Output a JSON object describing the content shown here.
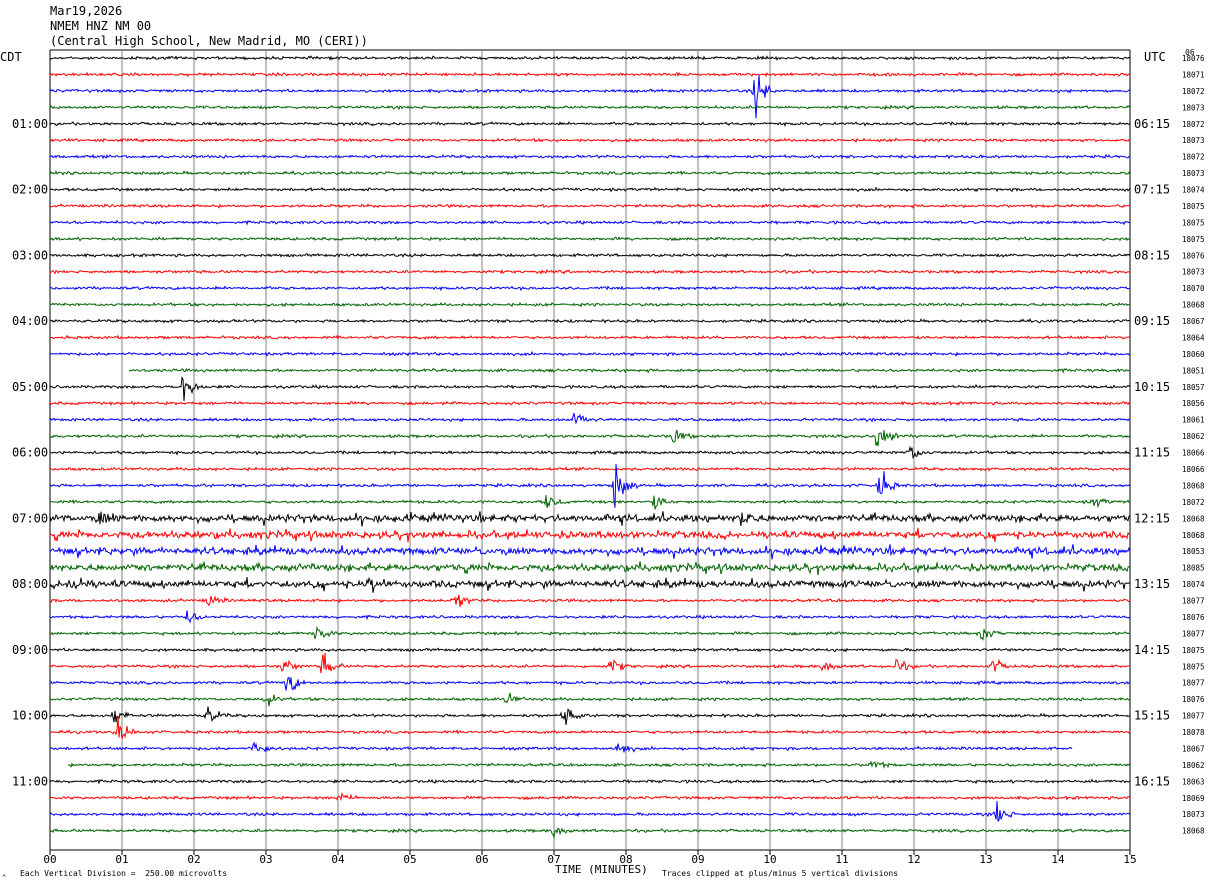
{
  "header": {
    "date": "Mar19,2026",
    "station": "NMEM HNZ NM 00",
    "location": "(Central High School, New Madrid, MO (CERI))"
  },
  "labels": {
    "left_tz": "CDT",
    "right_tz": "UTC",
    "right_corner": "06"
  },
  "footer": {
    "scale_note": "Each Vertical Division =  250.00 microvolts",
    "clip_note": "Traces clipped at plus/minus 5 vertical divisions",
    "corner_mark": "^"
  },
  "colors": {
    "trace_cycle": [
      "#000000",
      "#ff0000",
      "#0000ff",
      "#006400"
    ],
    "grid": "#808080"
  },
  "chart_data": {
    "type": "seismogram",
    "xlabel": "TIME (MINUTES)",
    "xlim": [
      0,
      15
    ],
    "x_ticks": [
      "00",
      "01",
      "02",
      "03",
      "04",
      "05",
      "06",
      "07",
      "08",
      "09",
      "10",
      "11",
      "12",
      "13",
      "14",
      "15"
    ],
    "trace_interval_minutes": 15,
    "left_time_labels": [
      {
        "row": 4,
        "label": "01:00"
      },
      {
        "row": 8,
        "label": "02:00"
      },
      {
        "row": 12,
        "label": "03:00"
      },
      {
        "row": 16,
        "label": "04:00"
      },
      {
        "row": 20,
        "label": "05:00"
      },
      {
        "row": 24,
        "label": "06:00"
      },
      {
        "row": 28,
        "label": "07:00"
      },
      {
        "row": 32,
        "label": "08:00"
      },
      {
        "row": 36,
        "label": "09:00"
      },
      {
        "row": 40,
        "label": "10:00"
      },
      {
        "row": 44,
        "label": "11:00"
      }
    ],
    "right_time_labels": [
      {
        "row": 4,
        "label": "06:15"
      },
      {
        "row": 8,
        "label": "07:15"
      },
      {
        "row": 12,
        "label": "08:15"
      },
      {
        "row": 16,
        "label": "09:15"
      },
      {
        "row": 20,
        "label": "10:15"
      },
      {
        "row": 24,
        "label": "11:15"
      },
      {
        "row": 28,
        "label": "12:15"
      },
      {
        "row": 32,
        "label": "13:15"
      },
      {
        "row": 36,
        "label": "14:15"
      },
      {
        "row": 40,
        "label": "15:15"
      },
      {
        "row": 44,
        "label": "16:15"
      }
    ],
    "trace_values": [
      "18076",
      "18071",
      "18072",
      "18073",
      "18072",
      "18073",
      "18072",
      "18073",
      "18074",
      "18075",
      "18075",
      "18075",
      "18076",
      "18073",
      "18070",
      "18068",
      "18067",
      "18064",
      "18060",
      "18051",
      "18057",
      "18056",
      "18061",
      "18062",
      "18066",
      "18066",
      "18068",
      "18072",
      "18068",
      "18068",
      "18053",
      "18085",
      "18074",
      "18077",
      "18076",
      "18077",
      "18075",
      "18075",
      "18077",
      "18076",
      "18077",
      "18078",
      "18067",
      "18062",
      "18063",
      "18069",
      "18073",
      "18068"
    ],
    "activity": {
      "noisy_rows": [
        28,
        29,
        30,
        31,
        32
      ],
      "trace_start_minutes": {
        "19": 1.1,
        "43": 0.25
      },
      "trace_end_minutes": {
        "42": 14.2
      },
      "events": [
        {
          "row": 2,
          "minute": 9.8,
          "amplitude": 22
        },
        {
          "row": 20,
          "minute": 1.85,
          "amplitude": 16
        },
        {
          "row": 22,
          "minute": 7.3,
          "amplitude": 10
        },
        {
          "row": 23,
          "minute": 8.65,
          "amplitude": 9
        },
        {
          "row": 23,
          "minute": 11.5,
          "amplitude": 28
        },
        {
          "row": 24,
          "minute": 11.95,
          "amplitude": 10
        },
        {
          "row": 26,
          "minute": 7.85,
          "amplitude": 24
        },
        {
          "row": 26,
          "minute": 11.5,
          "amplitude": 22
        },
        {
          "row": 27,
          "minute": 6.9,
          "amplitude": 8
        },
        {
          "row": 27,
          "minute": 8.4,
          "amplitude": 8
        },
        {
          "row": 27,
          "minute": 14.5,
          "amplitude": 6
        },
        {
          "row": 28,
          "minute": 0.7,
          "amplitude": 7
        },
        {
          "row": 28,
          "minute": 9.6,
          "amplitude": 9
        },
        {
          "row": 32,
          "minute": 0.3,
          "amplitude": 12
        },
        {
          "row": 32,
          "minute": 4.45,
          "amplitude": 12
        },
        {
          "row": 33,
          "minute": 2.2,
          "amplitude": 7
        },
        {
          "row": 33,
          "minute": 5.65,
          "amplitude": 9
        },
        {
          "row": 34,
          "minute": 1.9,
          "amplitude": 8
        },
        {
          "row": 35,
          "minute": 3.7,
          "amplitude": 12
        },
        {
          "row": 35,
          "minute": 12.95,
          "amplitude": 8
        },
        {
          "row": 37,
          "minute": 3.25,
          "amplitude": 9
        },
        {
          "row": 37,
          "minute": 3.8,
          "amplitude": 14
        },
        {
          "row": 37,
          "minute": 7.8,
          "amplitude": 8
        },
        {
          "row": 37,
          "minute": 10.75,
          "amplitude": 7
        },
        {
          "row": 37,
          "minute": 11.75,
          "amplitude": 9
        },
        {
          "row": 37,
          "minute": 13.1,
          "amplitude": 8
        },
        {
          "row": 38,
          "minute": 3.3,
          "amplitude": 14
        },
        {
          "row": 39,
          "minute": 3.0,
          "amplitude": 8
        },
        {
          "row": 39,
          "minute": 6.35,
          "amplitude": 6
        },
        {
          "row": 40,
          "minute": 0.9,
          "amplitude": 9
        },
        {
          "row": 40,
          "minute": 2.2,
          "amplitude": 10
        },
        {
          "row": 40,
          "minute": 7.15,
          "amplitude": 14
        },
        {
          "row": 41,
          "minute": 0.95,
          "amplitude": 14
        },
        {
          "row": 42,
          "minute": 2.85,
          "amplitude": 10
        },
        {
          "row": 42,
          "minute": 7.9,
          "amplitude": 8
        },
        {
          "row": 43,
          "minute": 11.4,
          "amplitude": 7
        },
        {
          "row": 45,
          "minute": 4.0,
          "amplitude": 6
        },
        {
          "row": 46,
          "minute": 13.15,
          "amplitude": 14
        },
        {
          "row": 47,
          "minute": 7.0,
          "amplitude": 7
        }
      ]
    }
  }
}
